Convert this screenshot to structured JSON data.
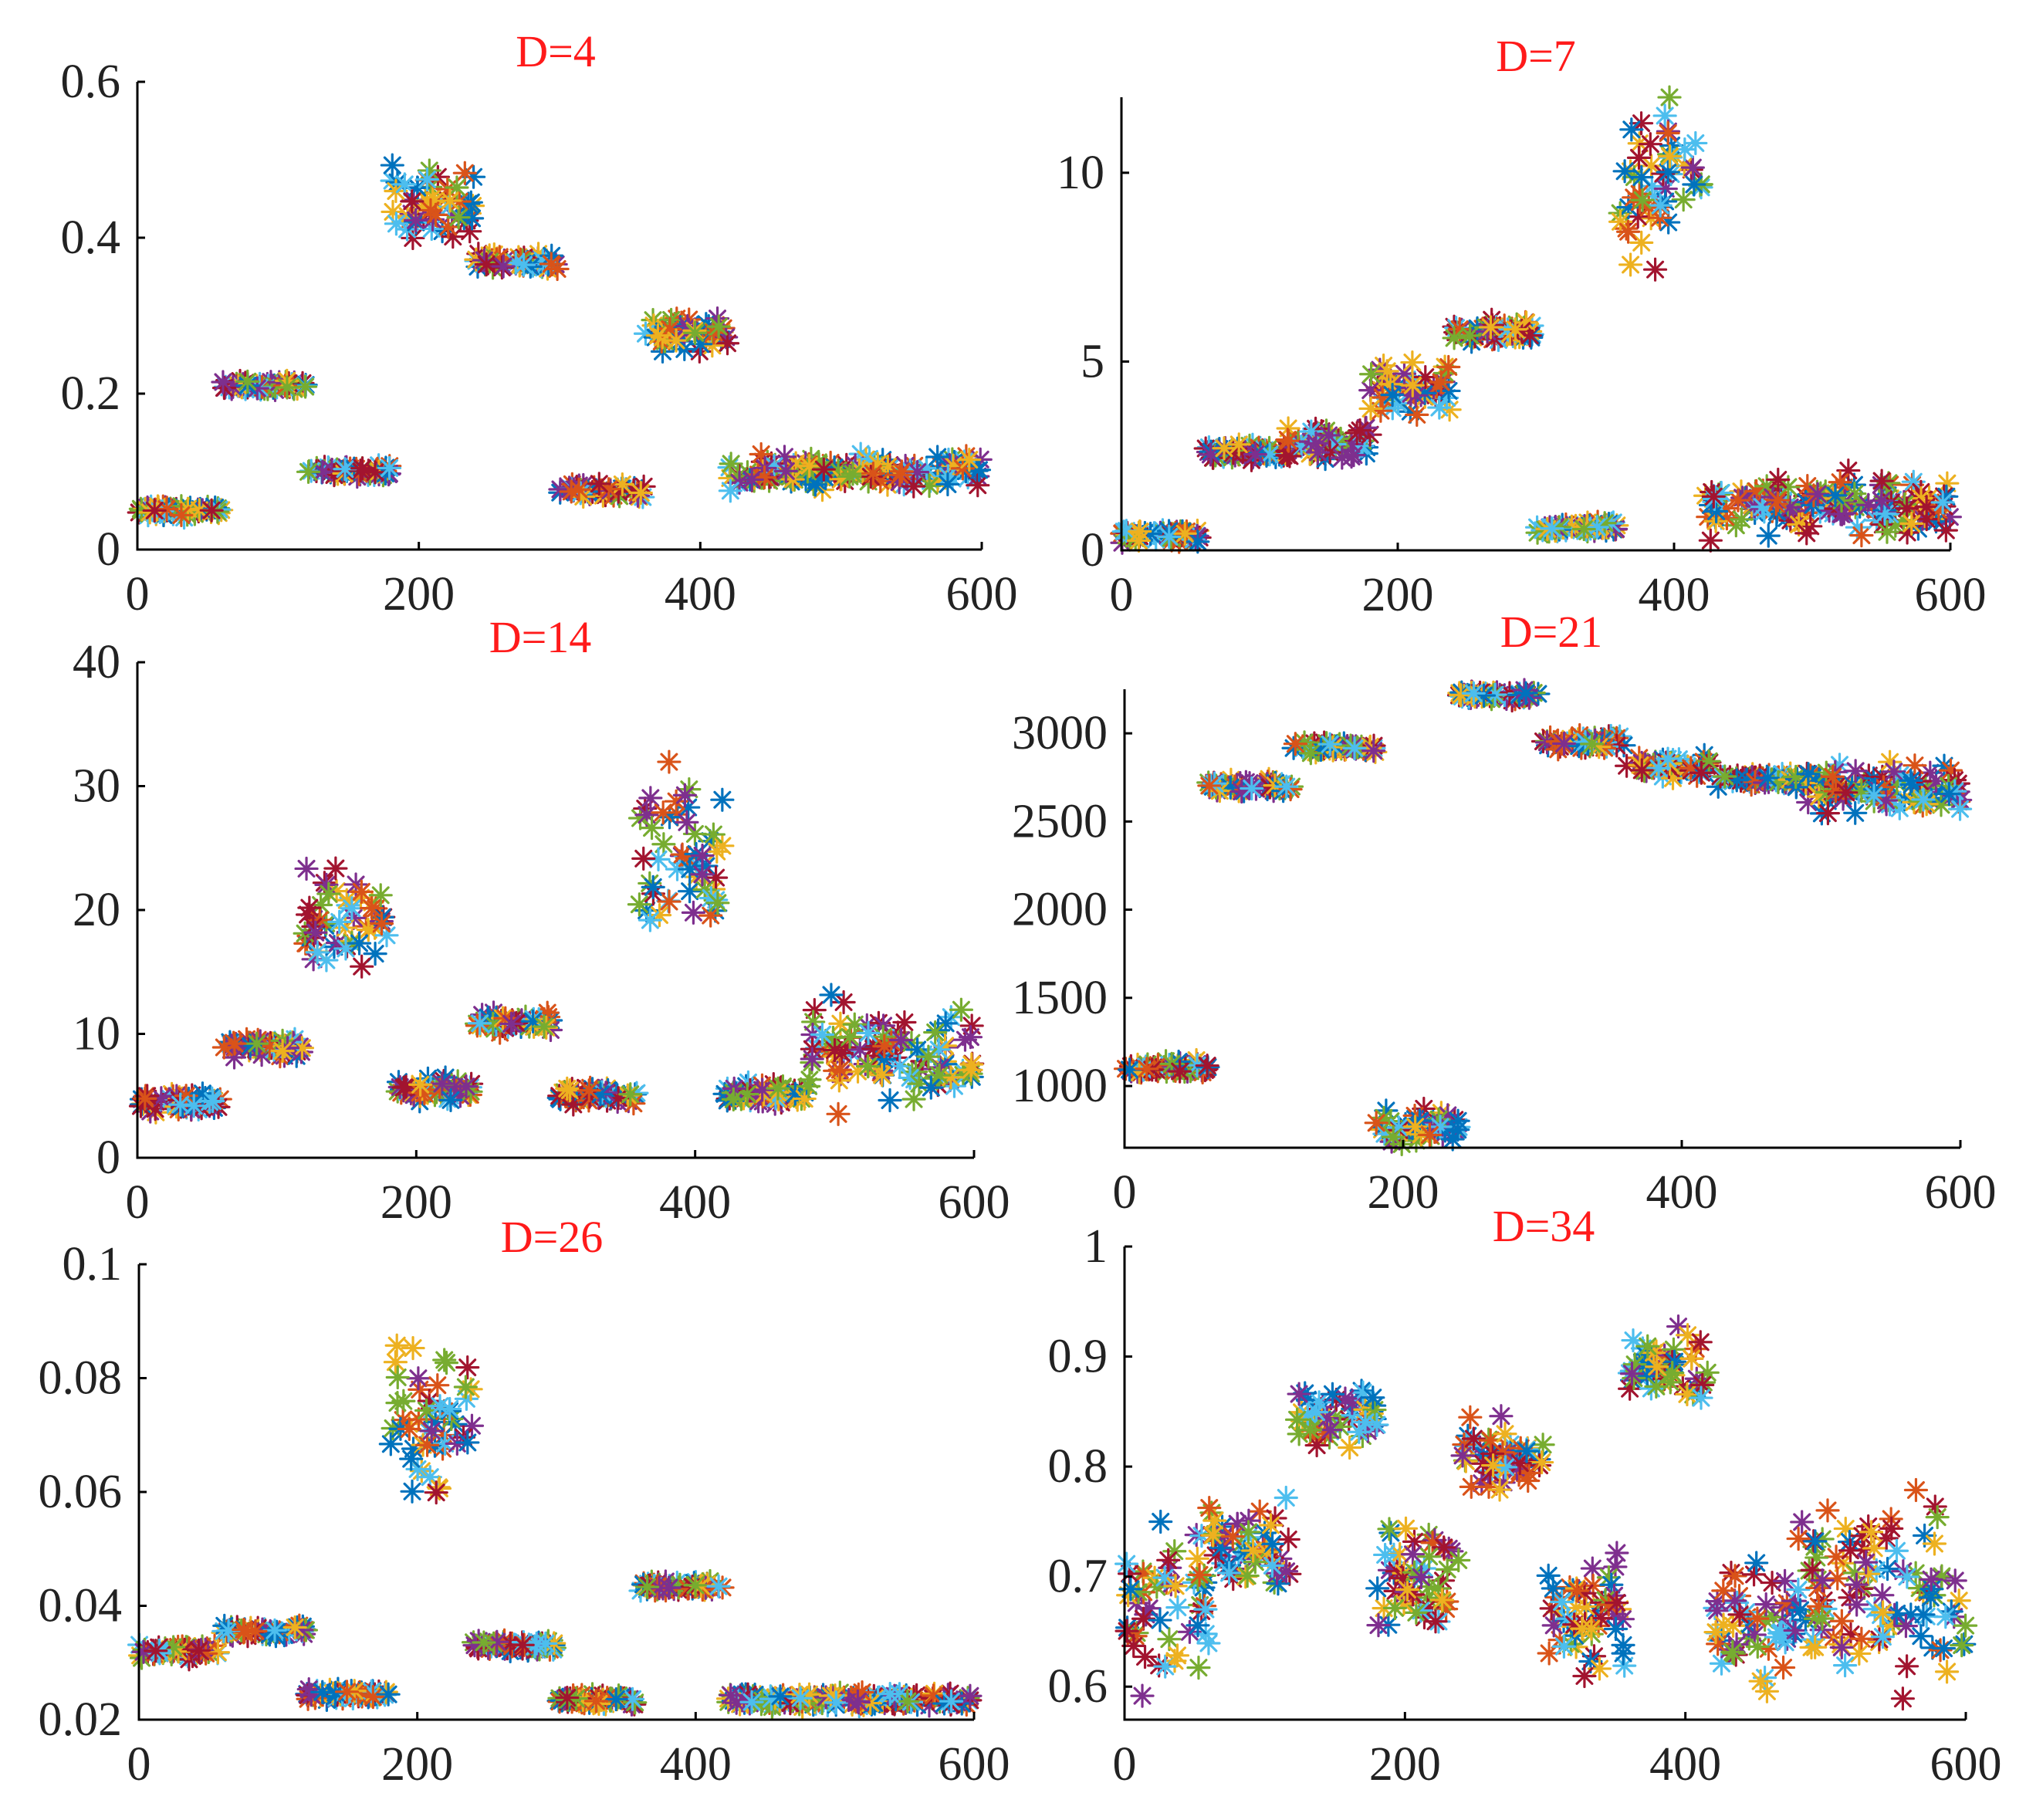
{
  "figure": {
    "description": "six scatter panels of sample index vs feature value"
  },
  "colors": [
    "#0072BD",
    "#D95319",
    "#EDB120",
    "#7E2F8E",
    "#77AC30",
    "#4DBEEE",
    "#A2142F"
  ],
  "chart_data": [
    {
      "type": "scatter",
      "title": "D=4",
      "marker": "asterisk",
      "xlim": [
        0,
        600
      ],
      "ylim": [
        0,
        0.6
      ],
      "xticks": [
        0,
        200,
        400,
        600
      ],
      "xtick_labels": [
        "0",
        "200",
        "400",
        "600"
      ],
      "yticks": [
        0,
        0.2,
        0.4,
        0.6
      ],
      "ytick_labels": [
        "0",
        "0.2",
        "0.4",
        "0.6"
      ],
      "clusters": [
        {
          "x": [
            0,
            60
          ],
          "y": 0.05,
          "spread": 0.006
        },
        {
          "x": [
            60,
            120
          ],
          "y": 0.21,
          "spread": 0.006
        },
        {
          "x": [
            120,
            180
          ],
          "y": 0.1,
          "spread": 0.006
        },
        {
          "x": [
            180,
            240
          ],
          "y": 0.45,
          "spread": 0.035
        },
        {
          "x": [
            240,
            300
          ],
          "y": 0.37,
          "spread": 0.008
        },
        {
          "x": [
            300,
            360
          ],
          "y": 0.075,
          "spread": 0.006
        },
        {
          "x": [
            360,
            420
          ],
          "y": 0.28,
          "spread": 0.018
        },
        {
          "x": [
            420,
            600
          ],
          "y": 0.1,
          "spread": 0.015
        }
      ]
    },
    {
      "type": "scatter",
      "title": "D=7",
      "marker": "asterisk",
      "xlim": [
        0,
        600
      ],
      "ylim": [
        0,
        12
      ],
      "xticks": [
        0,
        200,
        400,
        600
      ],
      "xtick_labels": [
        "0",
        "200",
        "400",
        "600"
      ],
      "yticks": [
        0,
        5,
        10
      ],
      "ytick_labels": [
        "0",
        "5",
        "10"
      ],
      "clusters": [
        {
          "x": [
            0,
            60
          ],
          "y": 0.4,
          "spread": 0.12
        },
        {
          "x": [
            60,
            120
          ],
          "y": 2.6,
          "spread": 0.15
        },
        {
          "x": [
            120,
            180
          ],
          "y": 2.9,
          "spread": 0.35
        },
        {
          "x": [
            180,
            240
          ],
          "y": 4.2,
          "spread": 0.55
        },
        {
          "x": [
            240,
            300
          ],
          "y": 5.8,
          "spread": 0.2
        },
        {
          "x": [
            300,
            360
          ],
          "y": 0.6,
          "spread": 0.1
        },
        {
          "x": [
            360,
            420
          ],
          "y": 9.5,
          "spread": 1.5
        },
        {
          "x": [
            420,
            600
          ],
          "y": 1.2,
          "spread": 0.55
        }
      ]
    },
    {
      "type": "scatter",
      "title": "D=14",
      "marker": "asterisk",
      "xlim": [
        0,
        600
      ],
      "ylim": [
        0,
        40
      ],
      "xticks": [
        0,
        200,
        400,
        600
      ],
      "xtick_labels": [
        "0",
        "200",
        "400",
        "600"
      ],
      "yticks": [
        0,
        10,
        20,
        30,
        40
      ],
      "ytick_labels": [
        "0",
        "10",
        "20",
        "30",
        "40"
      ],
      "clusters": [
        {
          "x": [
            0,
            60
          ],
          "y": 4.5,
          "spread": 0.5
        },
        {
          "x": [
            60,
            120
          ],
          "y": 9,
          "spread": 0.5
        },
        {
          "x": [
            120,
            180
          ],
          "y": 19,
          "spread": 2.8
        },
        {
          "x": [
            180,
            240
          ],
          "y": 5.5,
          "spread": 0.6
        },
        {
          "x": [
            240,
            300
          ],
          "y": 11,
          "spread": 0.5
        },
        {
          "x": [
            300,
            360
          ],
          "y": 5,
          "spread": 0.5
        },
        {
          "x": [
            360,
            420
          ],
          "y": 25,
          "spread": 4.2
        },
        {
          "x": [
            420,
            480
          ],
          "y": 5,
          "spread": 0.6
        },
        {
          "x": [
            480,
            600
          ],
          "y": 8.5,
          "spread": 2.6
        }
      ]
    },
    {
      "type": "scatter",
      "title": "D=21",
      "marker": "asterisk",
      "xlim": [
        0,
        600
      ],
      "ylim": [
        650,
        3250
      ],
      "xticks": [
        0,
        200,
        400,
        600
      ],
      "xtick_labels": [
        "0",
        "200",
        "400",
        "600"
      ],
      "yticks": [
        1000,
        1500,
        2000,
        2500,
        3000
      ],
      "ytick_labels": [
        "1000",
        "1500",
        "2000",
        "2500",
        "3000"
      ],
      "clusters": [
        {
          "x": [
            0,
            60
          ],
          "y": 1100,
          "spread": 25
        },
        {
          "x": [
            60,
            120
          ],
          "y": 2700,
          "spread": 25
        },
        {
          "x": [
            120,
            180
          ],
          "y": 2920,
          "spread": 25
        },
        {
          "x": [
            180,
            240
          ],
          "y": 760,
          "spread": 70
        },
        {
          "x": [
            240,
            300
          ],
          "y": 3220,
          "spread": 18
        },
        {
          "x": [
            300,
            360
          ],
          "y": 2950,
          "spread": 30
        },
        {
          "x": [
            360,
            420
          ],
          "y": 2820,
          "spread": 40
        },
        {
          "x": [
            420,
            480
          ],
          "y": 2740,
          "spread": 25
        },
        {
          "x": [
            480,
            600
          ],
          "y": 2680,
          "spread": 90
        }
      ]
    },
    {
      "type": "scatter",
      "title": "D=26",
      "marker": "asterisk",
      "xlim": [
        0,
        600
      ],
      "ylim": [
        0.02,
        0.1
      ],
      "xticks": [
        0,
        200,
        400,
        600
      ],
      "xtick_labels": [
        "0",
        "200",
        "400",
        "600"
      ],
      "yticks": [
        0.02,
        0.04,
        0.06,
        0.08,
        0.1
      ],
      "ytick_labels": [
        "0.02",
        "0.04",
        "0.06",
        "0.08",
        "0.1"
      ],
      "clusters": [
        {
          "x": [
            0,
            60
          ],
          "y": 0.032,
          "spread": 0.0008
        },
        {
          "x": [
            60,
            120
          ],
          "y": 0.0355,
          "spread": 0.0007
        },
        {
          "x": [
            120,
            180
          ],
          "y": 0.0245,
          "spread": 0.0006
        },
        {
          "x": [
            180,
            240
          ],
          "y": 0.074,
          "spread": 0.009
        },
        {
          "x": [
            240,
            300
          ],
          "y": 0.033,
          "spread": 0.0007
        },
        {
          "x": [
            300,
            360
          ],
          "y": 0.0235,
          "spread": 0.0006
        },
        {
          "x": [
            360,
            420
          ],
          "y": 0.0435,
          "spread": 0.0006
        },
        {
          "x": [
            420,
            600
          ],
          "y": 0.0235,
          "spread": 0.0008
        }
      ]
    },
    {
      "type": "scatter",
      "title": "D=34",
      "marker": "asterisk",
      "xlim": [
        0,
        600
      ],
      "ylim": [
        0.57,
        1.0
      ],
      "xticks": [
        0,
        200,
        400,
        600
      ],
      "xtick_labels": [
        "0",
        "200",
        "400",
        "600"
      ],
      "yticks": [
        0.6,
        0.7,
        0.8,
        0.9,
        1.0
      ],
      "ytick_labels": [
        "0.6",
        "0.7",
        "0.8",
        "0.9",
        "1"
      ],
      "clusters": [
        {
          "x": [
            0,
            60
          ],
          "y": 0.67,
          "spread": 0.045
        },
        {
          "x": [
            60,
            120
          ],
          "y": 0.72,
          "spread": 0.03
        },
        {
          "x": [
            120,
            180
          ],
          "y": 0.845,
          "spread": 0.018
        },
        {
          "x": [
            180,
            240
          ],
          "y": 0.7,
          "spread": 0.04
        },
        {
          "x": [
            240,
            300
          ],
          "y": 0.81,
          "spread": 0.022
        },
        {
          "x": [
            300,
            360
          ],
          "y": 0.67,
          "spread": 0.04
        },
        {
          "x": [
            360,
            420
          ],
          "y": 0.89,
          "spread": 0.022
        },
        {
          "x": [
            420,
            480
          ],
          "y": 0.66,
          "spread": 0.035
        },
        {
          "x": [
            480,
            600
          ],
          "y": 0.69,
          "spread": 0.055
        }
      ]
    }
  ]
}
